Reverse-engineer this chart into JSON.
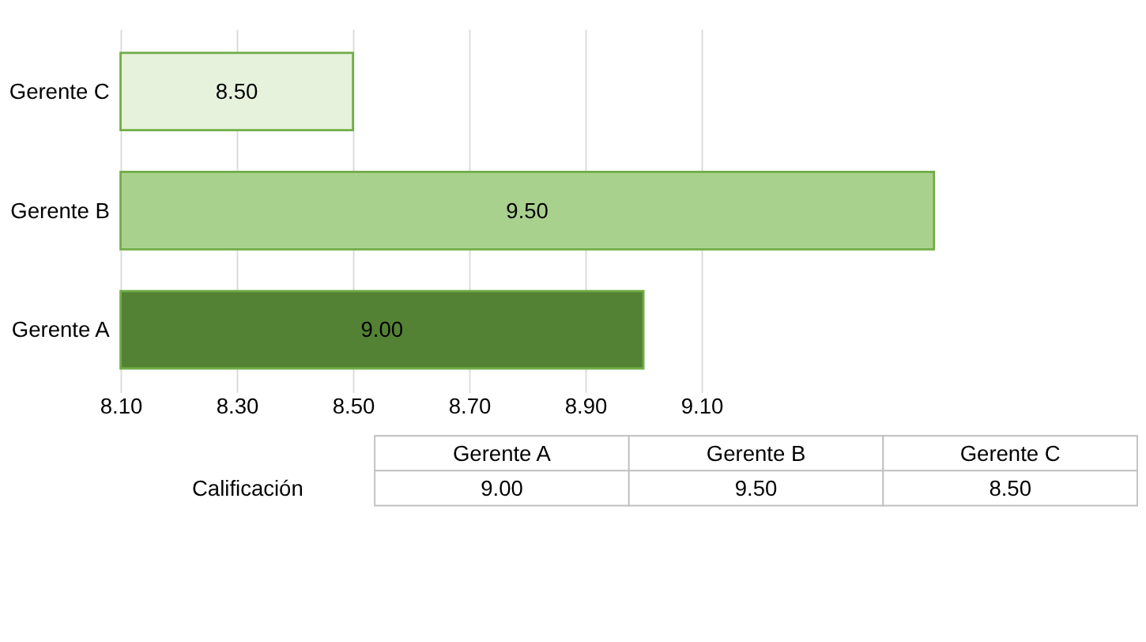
{
  "chart_data": {
    "type": "bar",
    "orientation": "horizontal",
    "categories": [
      "Gerente C",
      "Gerente B",
      "Gerente A"
    ],
    "series": [
      {
        "name": "Calificación",
        "colors": [
          "#e6f2dc",
          "#a9d18e",
          "#548235"
        ],
        "values": [
          8.5,
          9.5,
          9.0
        ],
        "value_labels": [
          "8.50",
          "9.50",
          "9.00"
        ]
      }
    ],
    "xlim": [
      8.1,
      9.5
    ],
    "xticks": [
      {
        "value": 8.1,
        "label": "8.10"
      },
      {
        "value": 8.3,
        "label": "8.30"
      },
      {
        "value": 8.5,
        "label": "8.50"
      },
      {
        "value": 8.7,
        "label": "8.70"
      },
      {
        "value": 8.9,
        "label": "8.90"
      },
      {
        "value": 9.1,
        "label": "9.10"
      }
    ],
    "grid": "x"
  }
}
